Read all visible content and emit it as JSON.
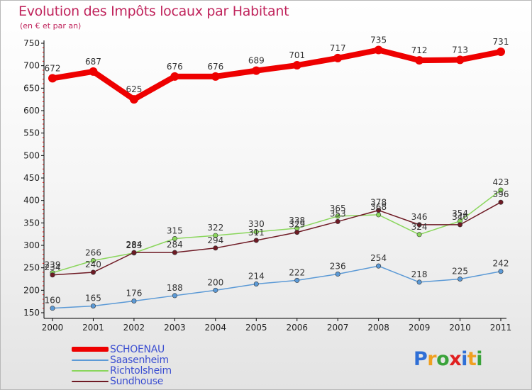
{
  "title": "Evolution des Impôts locaux par Habitant",
  "subtitle": "(en € et par an)",
  "logo_text": "Proxiti",
  "chart_data": {
    "type": "line",
    "title": "Evolution des Impôts locaux par Habitant",
    "subtitle": "(en € et par an)",
    "xlabel": "",
    "ylabel": "",
    "x": [
      "2000",
      "2001",
      "2002",
      "2003",
      "2004",
      "2005",
      "2006",
      "2007",
      "2008",
      "2009",
      "2010",
      "2011"
    ],
    "ylim": [
      150,
      750
    ],
    "yticks": [
      150,
      200,
      250,
      300,
      350,
      400,
      450,
      500,
      550,
      600,
      650,
      700,
      750
    ],
    "grid": false,
    "legend_position": "bottom-left",
    "series": [
      {
        "name": "SCHOENAU",
        "color": "#ee0000",
        "values": [
          672,
          687,
          625,
          676,
          676,
          689,
          701,
          717,
          735,
          712,
          713,
          731
        ]
      },
      {
        "name": "Saasenheim",
        "color": "#5c9ad6",
        "values": [
          160,
          165,
          176,
          188,
          200,
          214,
          222,
          236,
          254,
          218,
          225,
          242
        ]
      },
      {
        "name": "Richtolsheim",
        "color": "#8ad65c",
        "values": [
          239,
          266,
          283,
          315,
          322,
          330,
          338,
          365,
          368,
          324,
          354,
          423
        ]
      },
      {
        "name": "Sundhouse",
        "color": "#6e1a24",
        "values": [
          234,
          240,
          284,
          284,
          294,
          311,
          329,
          353,
          378,
          346,
          346,
          396
        ]
      }
    ]
  }
}
